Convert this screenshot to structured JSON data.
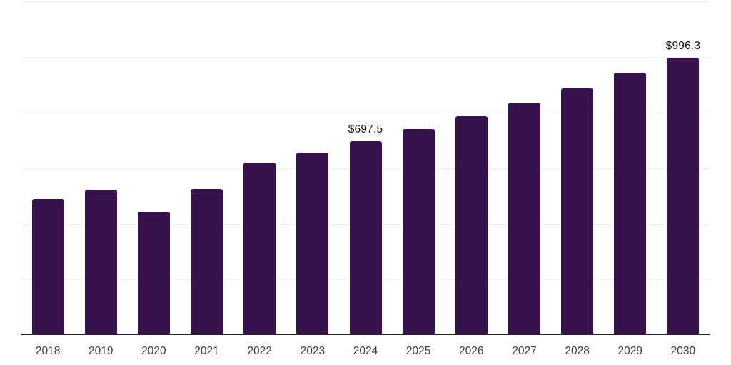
{
  "chart_data": {
    "type": "bar",
    "title": "",
    "xlabel": "",
    "ylabel": "",
    "categories": [
      "2018",
      "2019",
      "2020",
      "2021",
      "2022",
      "2023",
      "2024",
      "2025",
      "2026",
      "2027",
      "2028",
      "2029",
      "2030"
    ],
    "values": [
      490,
      522,
      444,
      526,
      621,
      657,
      697.5,
      741,
      786,
      835,
      886,
      943,
      996.3
    ],
    "ylim": [
      0,
      1200
    ],
    "gridline_step": 200,
    "grid": true,
    "legend": false,
    "annotations": [
      {
        "category": "2024",
        "text": "$697.5"
      },
      {
        "category": "2030",
        "text": "$996.3"
      }
    ]
  },
  "colors": {
    "background": "#ffffff",
    "bar": "#37124D",
    "gridline": "#efefef",
    "axis_line": "#262626",
    "x_tick_label": "#3b3b3b",
    "data_label": "#141414"
  }
}
